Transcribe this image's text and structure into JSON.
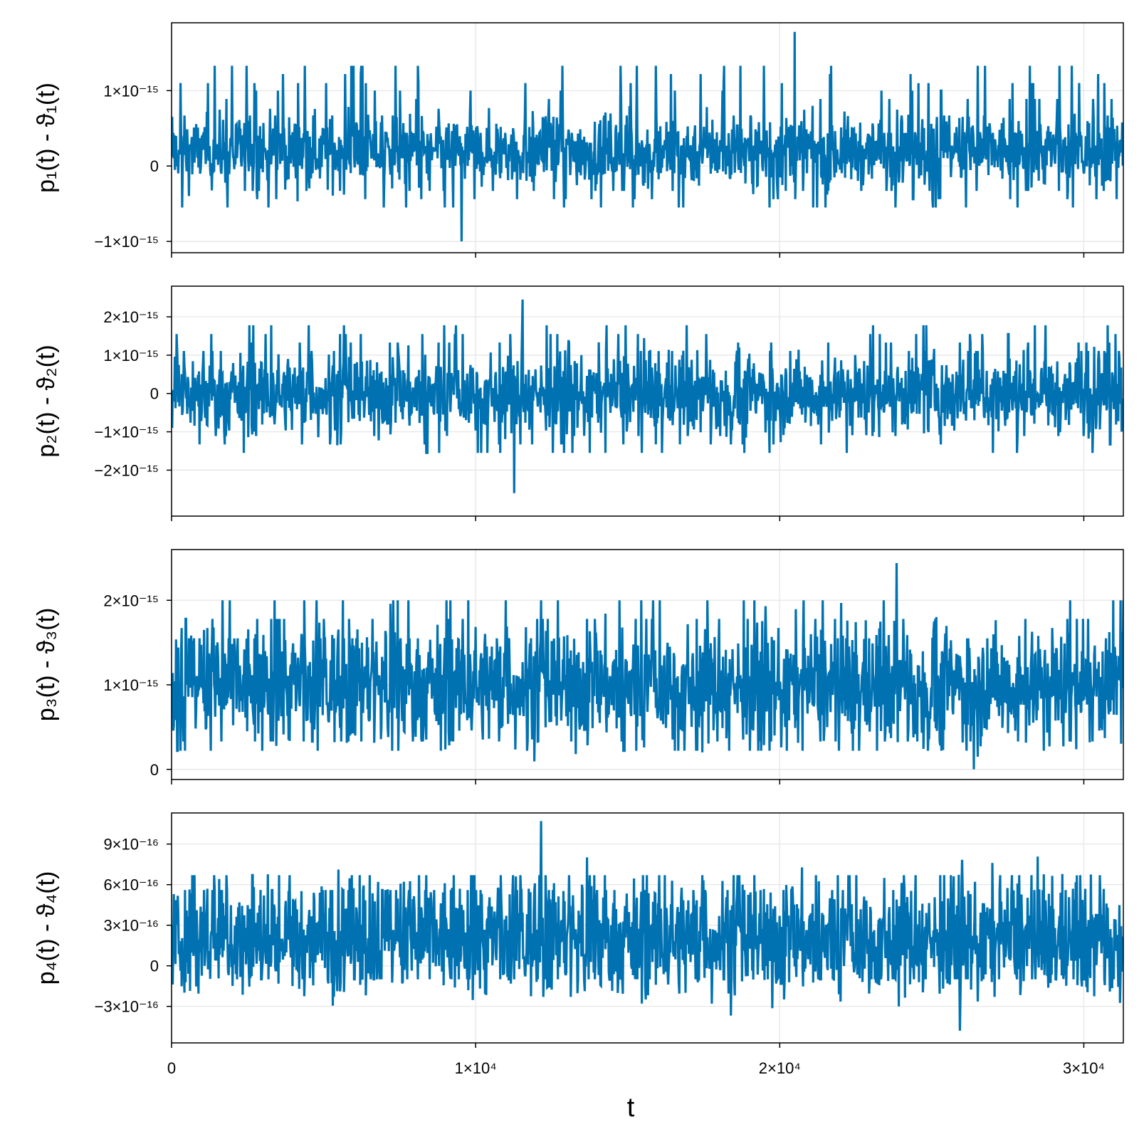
{
  "chart_data": [
    {
      "type": "line",
      "ylabel": "p₁(t) - ϑ₁(t)",
      "xlim": [
        0,
        31300
      ],
      "ylim": [
        -1.15e-15,
        1.9e-15
      ],
      "yticks": [
        {
          "value": 1e-15,
          "label": "1×10⁻¹⁵"
        },
        {
          "value": 0,
          "label": "0"
        },
        {
          "value": -1e-15,
          "label": "−1×10⁻¹⁵"
        }
      ],
      "series": [
        {
          "color": "#0072b2",
          "center": 2e-16,
          "amplitude": 4.5e-16,
          "top_lines": [
            4.4e-16,
            6.7e-16,
            8.9e-16,
            1e-15,
            1.1e-15,
            1.22e-15,
            1.33e-15
          ],
          "bottom_lines": [
            -3.3e-16,
            -4.4e-16,
            -5.5e-16
          ],
          "max": 1.78e-15,
          "min": -1e-15
        }
      ]
    },
    {
      "type": "line",
      "ylabel": "p₂(t) - ϑ₂(t)",
      "xlim": [
        0,
        31300
      ],
      "ylim": [
        -3.2e-15,
        2.8e-15
      ],
      "yticks": [
        {
          "value": 2e-15,
          "label": "2×10⁻¹⁵"
        },
        {
          "value": 1e-15,
          "label": "1×10⁻¹⁵"
        },
        {
          "value": 0,
          "label": "0"
        },
        {
          "value": -1e-15,
          "label": "−1×10⁻¹⁵"
        },
        {
          "value": -2e-15,
          "label": "−2×10⁻¹⁵"
        }
      ],
      "series": [
        {
          "color": "#0072b2",
          "center": 0.0,
          "amplitude": 1e-15,
          "top_lines": [
            1.11e-15,
            1.33e-15,
            1.55e-15,
            1.78e-15
          ],
          "bottom_lines": [
            -1.11e-15,
            -1.33e-15,
            -1.55e-15
          ],
          "max": 2.45e-15,
          "min": -2.6e-15
        }
      ]
    },
    {
      "type": "line",
      "ylabel": "p₃(t) - ϑ₃(t)",
      "xlim": [
        0,
        31300
      ],
      "ylim": [
        -1.2e-16,
        2.6e-15
      ],
      "yticks": [
        {
          "value": 2e-15,
          "label": "2×10⁻¹⁵"
        },
        {
          "value": 1e-15,
          "label": "1×10⁻¹⁵"
        },
        {
          "value": 0,
          "label": "0"
        }
      ],
      "series": [
        {
          "color": "#0072b2",
          "center": 1e-15,
          "amplitude": 6.7e-16,
          "top_lines": [
            1.55e-15,
            1.78e-15,
            2e-15
          ],
          "bottom_lines": [
            3.3e-16,
            2.2e-16
          ],
          "max": 2.44e-15,
          "min": 0.0
        }
      ]
    },
    {
      "type": "line",
      "ylabel": "p₄(t) - ϑ₄(t)",
      "xlim": [
        0,
        31300
      ],
      "ylim": [
        -5.7e-16,
        1.13e-15
      ],
      "yticks": [
        {
          "value": 9e-16,
          "label": "9×10⁻¹⁶"
        },
        {
          "value": 6e-16,
          "label": "6×10⁻¹⁶"
        },
        {
          "value": 3e-16,
          "label": "3×10⁻¹⁶"
        },
        {
          "value": 0,
          "label": "0"
        },
        {
          "value": -3e-16,
          "label": "−3×10⁻¹⁶"
        }
      ],
      "series": [
        {
          "color": "#0072b2",
          "center": 2e-16,
          "amplitude": 4.2e-16,
          "top_lines": [
            5.6e-16,
            6.7e-16
          ],
          "bottom_lines": [
            -1e-16
          ],
          "max": 1.07e-15,
          "min": -4.8e-16
        }
      ]
    }
  ],
  "xaxis": {
    "label": "t",
    "ticks": [
      {
        "value": 0,
        "label": "0"
      },
      {
        "value": 10000,
        "label": "1×10⁴"
      },
      {
        "value": 20000,
        "label": "2×10⁴"
      },
      {
        "value": 30000,
        "label": "3×10⁴"
      }
    ]
  },
  "grid": true
}
